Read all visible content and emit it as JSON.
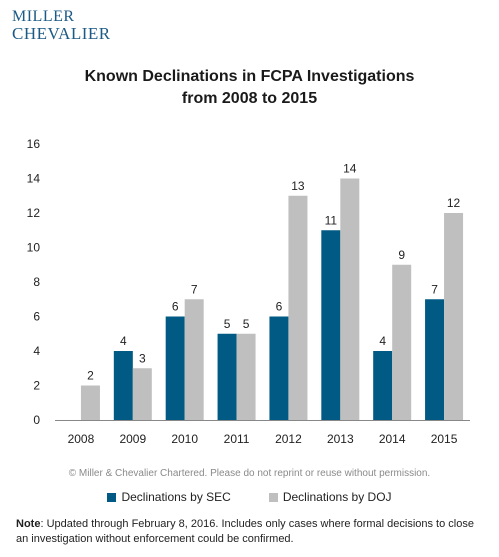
{
  "logo": {
    "line1": "MILLER",
    "line2": "CHEVALIER"
  },
  "title": {
    "line1": "Known Declinations in FCPA Investigations",
    "line2": "from 2008 to 2015"
  },
  "copyright": "© Miller & Chevalier Chartered. Please do not reprint or reuse without permission.",
  "note": {
    "label": "Note",
    "text": ": Updated through February 8, 2016. Includes only cases where formal decisions to close an investigation without enforcement could be confirmed."
  },
  "colors": {
    "sec": "#005a84",
    "doj": "#bfbfbf",
    "axis": "#888888"
  },
  "chart_data": {
    "type": "bar",
    "categories": [
      "2008",
      "2009",
      "2010",
      "2011",
      "2012",
      "2013",
      "2014",
      "2015"
    ],
    "series": [
      {
        "name": "Declinations by SEC",
        "values": [
          null,
          4,
          6,
          5,
          6,
          11,
          4,
          7
        ]
      },
      {
        "name": "Declinations by DOJ",
        "values": [
          2,
          3,
          7,
          5,
          13,
          14,
          9,
          12
        ]
      }
    ],
    "yticks": [
      0,
      2,
      4,
      6,
      8,
      10,
      12,
      14,
      16
    ],
    "ylim": [
      0,
      16
    ],
    "grid": false,
    "legend_position": "bottom",
    "data_labels": true
  }
}
